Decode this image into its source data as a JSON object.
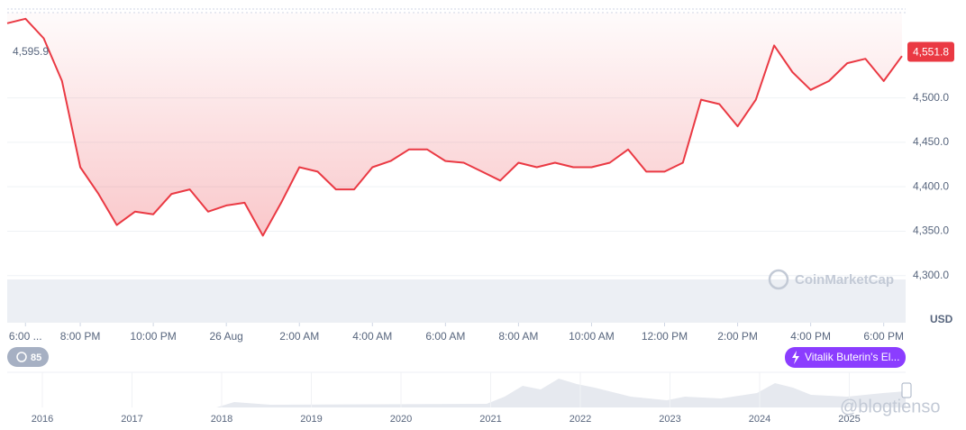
{
  "chart_data": {
    "type": "line",
    "color": "#ea3943",
    "values": [
      4584,
      4589,
      4567,
      4519,
      4422,
      4392,
      4357,
      4372,
      4369,
      4392,
      4397,
      4372,
      4379,
      4382,
      4345,
      4382,
      4422,
      4417,
      4397,
      4397,
      4422,
      4429,
      4442,
      4442,
      4429,
      4427,
      4417,
      4407,
      4427,
      4422,
      4427,
      4422,
      4422,
      4427,
      4442,
      4417,
      4417,
      4427,
      4498,
      4493,
      4468,
      4498,
      4559,
      4529,
      4509,
      4519,
      4539,
      4544,
      4519,
      4547
    ],
    "xlim": [
      0,
      49.2
    ],
    "xticks": [
      {
        "value": 1,
        "label": "6:00 ..."
      },
      {
        "value": 4,
        "label": "8:00 PM"
      },
      {
        "value": 8,
        "label": "10:00 PM"
      },
      {
        "value": 12,
        "label": "26 Aug"
      },
      {
        "value": 16,
        "label": "2:00 AM"
      },
      {
        "value": 20,
        "label": "4:00 AM"
      },
      {
        "value": 24,
        "label": "6:00 AM"
      },
      {
        "value": 28,
        "label": "8:00 AM"
      },
      {
        "value": 32,
        "label": "10:00 AM"
      },
      {
        "value": 36,
        "label": "12:00 PM"
      },
      {
        "value": 40,
        "label": "2:00 PM"
      },
      {
        "value": 44,
        "label": "4:00 PM"
      },
      {
        "value": 48,
        "label": "6:00 PM"
      }
    ],
    "ylim": [
      4247,
      4600
    ],
    "yticks": [
      {
        "value": 4300,
        "label": "4,300.0"
      },
      {
        "value": 4350,
        "label": "4,350.0"
      },
      {
        "value": 4400,
        "label": "4,400.0"
      },
      {
        "value": 4450,
        "label": "4,450.0"
      },
      {
        "value": 4500,
        "label": "4,500.0"
      }
    ],
    "grid": true,
    "reference": {
      "value": 4595.9,
      "label": "4,595.9"
    },
    "current": {
      "value": 4551.8,
      "label": "4,551.8"
    },
    "unit": "USD",
    "watermark": "CoinMarketCap",
    "events_count": 85,
    "annotation": "Vitalik Buterin's El...",
    "navigator_years": [
      "2016",
      "2017",
      "2018",
      "2019",
      "2020",
      "2021",
      "2022",
      "2023",
      "2024",
      "2025"
    ],
    "credit": "@blogtienso"
  }
}
